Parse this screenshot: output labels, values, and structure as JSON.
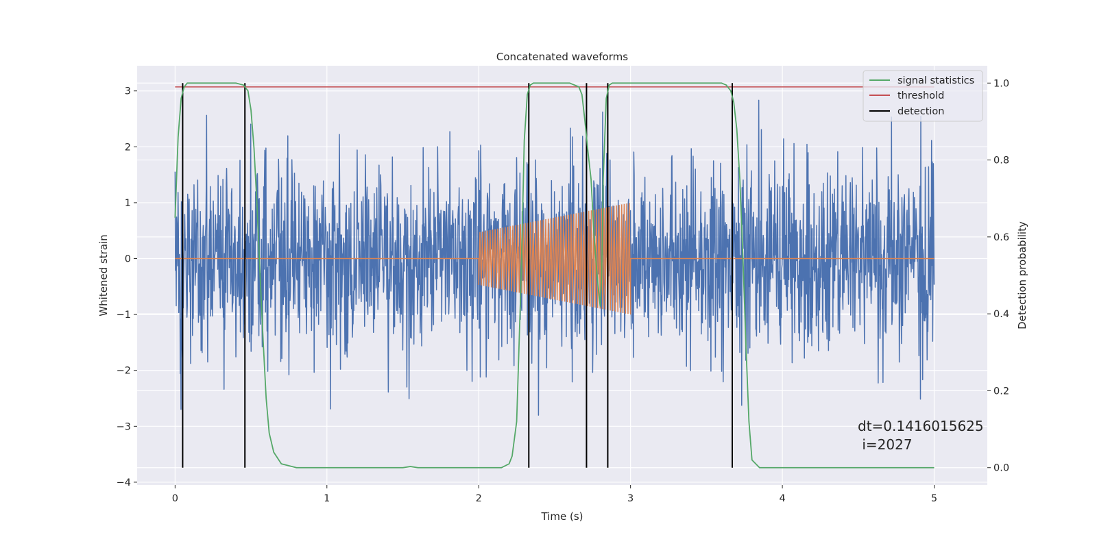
{
  "chart_data": {
    "type": "line",
    "title": "Concatenated waveforms",
    "xlabel": "Time (s)",
    "ylabel": "Whitened strain",
    "y2label": "Detection probability",
    "xlim": [
      -0.25,
      5.35
    ],
    "ylim": [
      -4.05,
      3.45
    ],
    "y2lim": [
      -0.045,
      1.045
    ],
    "xticks": [
      0,
      1,
      2,
      3,
      4,
      5
    ],
    "yticks": [
      -4,
      -3,
      -2,
      -1,
      0,
      1,
      2,
      3
    ],
    "y2ticks": [
      0.0,
      0.2,
      0.4,
      0.6,
      0.8,
      1.0
    ],
    "grid": true,
    "legend_position": "top-right",
    "legend": [
      {
        "label": "signal statistics",
        "color": "#55a868"
      },
      {
        "label": "threshold",
        "color": "#c44e52"
      },
      {
        "label": "detection",
        "color": "#000000"
      }
    ],
    "annotation": {
      "line1": "dt=0.1416015625",
      "line2": " i=2027",
      "x": 4.5,
      "y": -3.0
    },
    "series": [
      {
        "role": "strain",
        "color": "#4c72b0",
        "axis": "left",
        "x_range": [
          0,
          5
        ],
        "n_points": 2048,
        "approx_std": 0.85,
        "approx_range": [
          -3.7,
          3.3
        ]
      },
      {
        "role": "template",
        "color": "#dd8452",
        "axis": "left",
        "x_range": [
          0,
          5
        ],
        "chirp": {
          "t_start": 2.0,
          "t_end": 3.0,
          "amp_start": 0.47,
          "amp_end": 1.0,
          "cycles": 60
        },
        "zero_value": 0
      },
      {
        "name": "signal statistics",
        "color": "#55a868",
        "axis": "right",
        "x": [
          0.0,
          0.02,
          0.04,
          0.06,
          0.08,
          0.1,
          0.2,
          0.3,
          0.4,
          0.45,
          0.48,
          0.5,
          0.52,
          0.54,
          0.56,
          0.58,
          0.6,
          0.62,
          0.65,
          0.7,
          0.8,
          1.0,
          1.5,
          1.55,
          1.6,
          2.0,
          2.15,
          2.2,
          2.22,
          2.25,
          2.28,
          2.3,
          2.32,
          2.34,
          2.36,
          2.4,
          2.6,
          2.66,
          2.68,
          2.7,
          2.72,
          2.74,
          2.76,
          2.78,
          2.8,
          2.81,
          2.82,
          2.84,
          2.86,
          2.88,
          3.0,
          3.5,
          3.6,
          3.63,
          3.66,
          3.68,
          3.7,
          3.72,
          3.74,
          3.76,
          3.78,
          3.8,
          3.85,
          4.0,
          4.5,
          5.0
        ],
        "values": [
          0.65,
          0.86,
          0.96,
          0.99,
          1.0,
          1.0,
          1.0,
          1.0,
          1.0,
          0.995,
          0.98,
          0.93,
          0.83,
          0.68,
          0.5,
          0.33,
          0.18,
          0.09,
          0.04,
          0.01,
          0.0,
          0.0,
          0.0,
          0.003,
          0.0,
          0.0,
          0.0,
          0.01,
          0.03,
          0.12,
          0.5,
          0.85,
          0.97,
          0.995,
          1.0,
          1.0,
          1.0,
          0.99,
          0.97,
          0.9,
          0.82,
          0.75,
          0.6,
          0.5,
          0.42,
          0.5,
          0.75,
          0.96,
          0.995,
          1.0,
          1.0,
          1.0,
          1.0,
          0.995,
          0.98,
          0.95,
          0.88,
          0.75,
          0.55,
          0.32,
          0.12,
          0.02,
          0.0,
          0.0,
          0.0,
          0.0
        ]
      },
      {
        "name": "threshold",
        "color": "#c44e52",
        "axis": "right",
        "x": [
          0,
          5
        ],
        "values": [
          0.99,
          0.99
        ]
      }
    ],
    "detections": {
      "color": "#000000",
      "axis": "right",
      "x": [
        0.05,
        0.46,
        2.33,
        2.71,
        2.85,
        3.67
      ],
      "ymin": 0.0,
      "ymax": 1.0
    }
  }
}
